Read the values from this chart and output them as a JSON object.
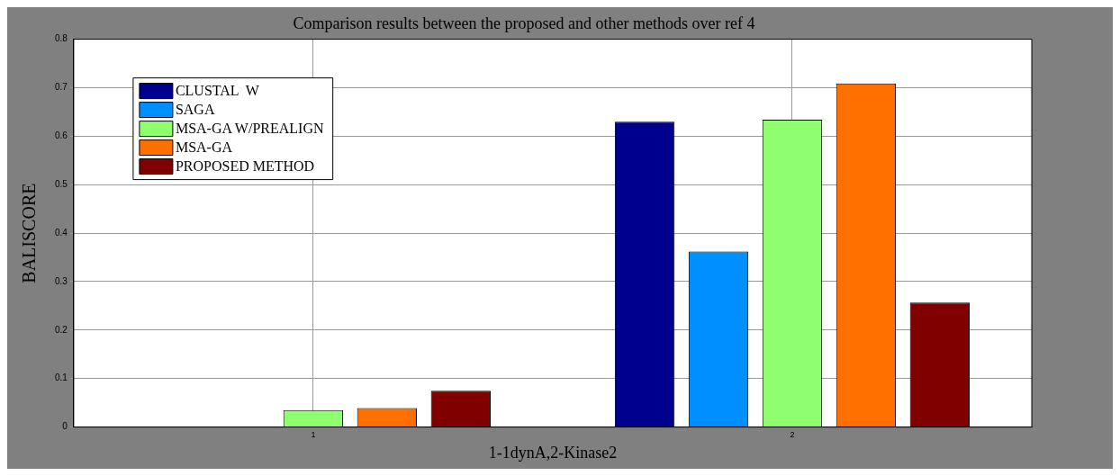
{
  "chart_data": {
    "type": "bar",
    "title": "Comparison results between the proposed and other methods over ref 4",
    "xlabel": "1-1dynA,2-Kinase2",
    "ylabel": "BALISCORE",
    "categories": [
      "1",
      "2"
    ],
    "series": [
      {
        "name": "CLUSTAL  W",
        "color": "#00008f",
        "values": [
          0,
          0.63
        ]
      },
      {
        "name": "SAGA",
        "color": "#008fff",
        "values": [
          0,
          0.362
        ]
      },
      {
        "name": "MSA-GA W/PREALIGN",
        "color": "#8fff6f",
        "values": [
          0.035,
          0.634
        ]
      },
      {
        "name": "MSA-GA",
        "color": "#ff7000",
        "values": [
          0.039,
          0.709
        ]
      },
      {
        "name": "PROPOSED METHOD",
        "color": "#800000",
        "values": [
          0.075,
          0.257
        ]
      }
    ],
    "ylim": [
      0,
      0.8
    ],
    "yticks": [
      0,
      0.1,
      0.2,
      0.3,
      0.4,
      0.5,
      0.6,
      0.7,
      0.8
    ],
    "grid": true,
    "legend": "top left"
  }
}
